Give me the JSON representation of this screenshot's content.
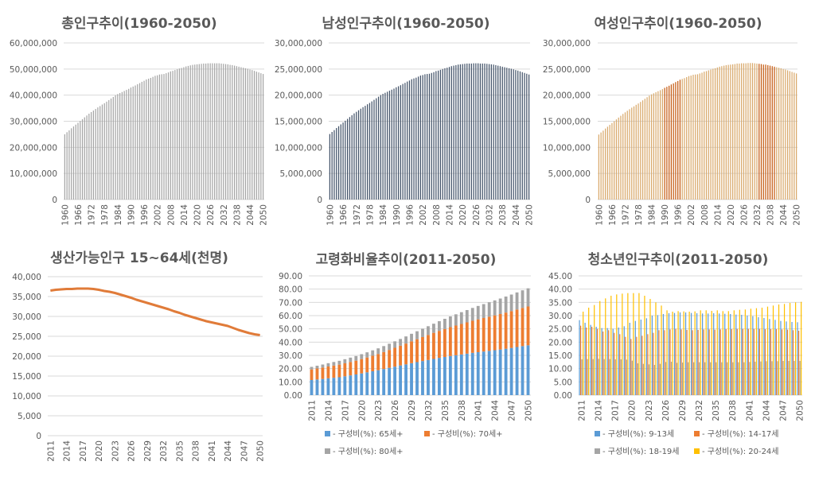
{
  "chart_data": [
    {
      "id": "total",
      "type": "bar",
      "title": "총인구추이(1960-2050)",
      "x_start": 1960,
      "x_end": 2050,
      "xtick_labels": [
        "1960",
        "1966",
        "1972",
        "1978",
        "1984",
        "1990",
        "1996",
        "2002",
        "2008",
        "2014",
        "2020",
        "2026",
        "2032",
        "2038",
        "2044",
        "2050"
      ],
      "yticks": [
        0,
        10000000,
        20000000,
        30000000,
        40000000,
        50000000,
        60000000
      ],
      "ytick_labels": [
        "0",
        "10,000,000",
        "20,000,000",
        "30,000,000",
        "40,000,000",
        "50,000,000",
        "60,000,000"
      ],
      "ylim": [
        0,
        60000000
      ],
      "grid": true,
      "color": "#a5a5a5",
      "values": [
        25000000,
        25800000,
        26500000,
        27300000,
        28000000,
        28700000,
        29400000,
        30100000,
        30800000,
        31500000,
        32200000,
        32900000,
        33500000,
        34100000,
        34700000,
        35300000,
        35800000,
        36400000,
        36900000,
        37500000,
        38100000,
        38700000,
        39300000,
        39900000,
        40400000,
        40800000,
        41200000,
        41600000,
        42000000,
        42400000,
        42900000,
        43300000,
        43700000,
        44200000,
        44600000,
        45100000,
        45500000,
        46000000,
        46300000,
        46600000,
        47000000,
        47400000,
        47600000,
        47900000,
        48000000,
        48100000,
        48400000,
        48700000,
        49100000,
        49300000,
        49600000,
        49900000,
        50200000,
        50400000,
        50700000,
        51000000,
        51200000,
        51400000,
        51600000,
        51700000,
        51800000,
        51900000,
        52000000,
        52100000,
        52100000,
        52200000,
        52200000,
        52200000,
        52200000,
        52200000,
        52200000,
        52100000,
        52000000,
        51900000,
        51800000,
        51600000,
        51500000,
        51300000,
        51100000,
        50900000,
        50700000,
        50500000,
        50300000,
        50100000,
        49800000,
        49600000,
        49300000,
        49000000,
        48700000,
        48400000,
        48100000
      ]
    },
    {
      "id": "male",
      "type": "bar",
      "title": "남성인구추이(1960-2050)",
      "x_start": 1960,
      "x_end": 2050,
      "xtick_labels": [
        "1960",
        "1966",
        "1972",
        "1978",
        "1984",
        "1990",
        "1996",
        "2002",
        "2008",
        "2014",
        "2020",
        "2026",
        "2032",
        "2038",
        "2044",
        "2050"
      ],
      "yticks": [
        0,
        5000000,
        10000000,
        15000000,
        20000000,
        25000000,
        30000000
      ],
      "ytick_labels": [
        "0",
        "5,000,000",
        "10,000,000",
        "15,000,000",
        "20,000,000",
        "25,000,000",
        "30,000,000"
      ],
      "ylim": [
        0,
        30000000
      ],
      "grid": true,
      "color": "#44546a",
      "values": [
        12550000,
        12950000,
        13300000,
        13700000,
        14050000,
        14400000,
        14750000,
        15100000,
        15450000,
        15800000,
        16150000,
        16500000,
        16800000,
        17100000,
        17400000,
        17700000,
        17950000,
        18250000,
        18500000,
        18800000,
        19100000,
        19400000,
        19700000,
        20000000,
        20250000,
        20450000,
        20650000,
        20850000,
        21050000,
        21250000,
        21500000,
        21700000,
        21900000,
        22150000,
        22350000,
        22600000,
        22800000,
        23050000,
        23200000,
        23350000,
        23550000,
        23750000,
        23850000,
        24000000,
        24050000,
        24100000,
        24250000,
        24400000,
        24600000,
        24700000,
        24850000,
        25000000,
        25150000,
        25250000,
        25400000,
        25550000,
        25650000,
        25750000,
        25850000,
        25900000,
        25950000,
        26000000,
        26050000,
        26050000,
        26050000,
        26100000,
        26100000,
        26100000,
        26050000,
        26050000,
        26050000,
        26000000,
        25950000,
        25900000,
        25850000,
        25750000,
        25650000,
        25550000,
        25450000,
        25350000,
        25250000,
        25150000,
        25050000,
        24950000,
        24800000,
        24700000,
        24550000,
        24400000,
        24250000,
        24100000,
        23950000
      ]
    },
    {
      "id": "female",
      "type": "bar",
      "title": "여성인구추이(1960-2050)",
      "x_start": 1960,
      "x_end": 2050,
      "xtick_labels": [
        "1960",
        "1966",
        "1972",
        "1978",
        "1984",
        "1990",
        "1996",
        "2002",
        "2008",
        "2014",
        "2020",
        "2026",
        "2032",
        "2038",
        "2044",
        "2050"
      ],
      "yticks": [
        0,
        5000000,
        10000000,
        15000000,
        20000000,
        25000000,
        30000000
      ],
      "ytick_labels": [
        "0",
        "5,000,000",
        "10,000,000",
        "15,000,000",
        "20,000,000",
        "25,000,000",
        "30,000,000"
      ],
      "ylim": [
        0,
        30000000
      ],
      "grid": true,
      "color": "#d9a96b",
      "highlight_color": "#c55a11",
      "highlight_ranges": [
        [
          1990,
          1997
        ],
        [
          2033,
          2040
        ]
      ],
      "values": [
        12450000,
        12850000,
        13200000,
        13600000,
        13950000,
        14300000,
        14650000,
        15000000,
        15350000,
        15700000,
        16050000,
        16400000,
        16700000,
        17000000,
        17300000,
        17600000,
        17850000,
        18150000,
        18400000,
        18700000,
        19000000,
        19300000,
        19600000,
        19900000,
        20150000,
        20350000,
        20550000,
        20750000,
        20950000,
        21150000,
        21400000,
        21600000,
        21800000,
        22050000,
        22250000,
        22500000,
        22700000,
        22950000,
        23100000,
        23250000,
        23450000,
        23650000,
        23750000,
        23900000,
        23950000,
        24000000,
        24150000,
        24300000,
        24500000,
        24600000,
        24750000,
        24900000,
        25050000,
        25150000,
        25300000,
        25450000,
        25550000,
        25650000,
        25750000,
        25800000,
        25850000,
        25900000,
        25950000,
        26050000,
        26050000,
        26100000,
        26100000,
        26100000,
        26150000,
        26150000,
        26150000,
        26100000,
        26050000,
        26000000,
        25950000,
        25850000,
        25850000,
        25750000,
        25650000,
        25550000,
        25450000,
        25350000,
        25250000,
        25150000,
        25000000,
        24900000,
        24750000,
        24600000,
        24450000,
        24300000,
        24150000
      ]
    },
    {
      "id": "working",
      "type": "line",
      "title": "생산가능인구 15~64세(천명)",
      "x_start": 2011,
      "x_end": 2050,
      "xtick_labels": [
        "2011",
        "2014",
        "2017",
        "2020",
        "2023",
        "2026",
        "2029",
        "2032",
        "2035",
        "2038",
        "2041",
        "2044",
        "2047",
        "2050"
      ],
      "yticks": [
        0,
        5000,
        10000,
        15000,
        20000,
        25000,
        30000,
        35000,
        40000
      ],
      "ytick_labels": [
        "0",
        "5,000",
        "10,000",
        "15,000",
        "20,000",
        "25,000",
        "30,000",
        "35,000",
        "40,000"
      ],
      "ylim": [
        0,
        40000
      ],
      "grid": true,
      "color": "#e07b39",
      "values": [
        36500,
        36700,
        36800,
        36900,
        36900,
        37000,
        37000,
        37000,
        36900,
        36700,
        36400,
        36200,
        35900,
        35500,
        35100,
        34700,
        34200,
        33800,
        33400,
        33000,
        32600,
        32200,
        31800,
        31300,
        30900,
        30400,
        30000,
        29600,
        29200,
        28800,
        28500,
        28200,
        27900,
        27600,
        27100,
        26600,
        26200,
        25800,
        25500,
        25300
      ]
    },
    {
      "id": "aging",
      "type": "stacked-bar",
      "title": "고령화비율추이(2011-2050)",
      "x_start": 2011,
      "x_end": 2050,
      "xtick_labels": [
        "2011",
        "2014",
        "2017",
        "2020",
        "2023",
        "2026",
        "2029",
        "2032",
        "2035",
        "2038",
        "2041",
        "2044",
        "2047",
        "2050"
      ],
      "yticks": [
        0,
        10,
        20,
        30,
        40,
        50,
        60,
        70,
        80,
        90
      ],
      "ytick_labels": [
        "0.00",
        "10.00",
        "20.00",
        "30.00",
        "40.00",
        "50.00",
        "60.00",
        "70.00",
        "80.00",
        "90.00"
      ],
      "ylim": [
        0,
        90
      ],
      "grid": true,
      "legend": "bottom",
      "series": [
        {
          "name": "- 구성비(%): 65세+",
          "color": "#5b9bd5",
          "values": [
            11.4,
            11.8,
            12.2,
            12.7,
            13.1,
            13.5,
            14.2,
            14.9,
            15.6,
            16.4,
            17.2,
            18.0,
            18.8,
            19.7,
            20.6,
            21.5,
            22.4,
            23.2,
            24.1,
            24.9,
            25.7,
            26.5,
            27.3,
            28.1,
            28.8,
            29.5,
            30.1,
            30.7,
            31.3,
            31.9,
            32.4,
            32.9,
            33.4,
            33.9,
            34.4,
            35.0,
            35.6,
            36.3,
            37.0,
            37.6
          ]
        },
        {
          "name": "- 구성비(%): 70세+",
          "color": "#ed7d31",
          "values": [
            8.0,
            8.3,
            8.6,
            8.9,
            9.2,
            9.5,
            9.8,
            10.1,
            10.4,
            10.8,
            11.2,
            11.7,
            12.2,
            12.8,
            13.5,
            14.2,
            14.9,
            15.7,
            16.5,
            17.3,
            18.1,
            18.9,
            19.7,
            20.4,
            21.1,
            21.8,
            22.4,
            23.0,
            23.6,
            24.2,
            24.8,
            25.3,
            25.8,
            26.3,
            26.8,
            27.3,
            27.8,
            28.3,
            28.8,
            29.3
          ]
        },
        {
          "name": "- 구성비(%): 80세+",
          "color": "#a5a5a5",
          "values": [
            1.9,
            2.1,
            2.3,
            2.5,
            2.7,
            2.9,
            3.1,
            3.3,
            3.5,
            3.7,
            3.9,
            4.1,
            4.3,
            4.5,
            4.7,
            4.9,
            5.1,
            5.4,
            5.7,
            6.0,
            6.3,
            6.6,
            6.9,
            7.3,
            7.7,
            8.1,
            8.5,
            8.9,
            9.3,
            9.7,
            10.1,
            10.5,
            10.9,
            11.3,
            11.7,
            12.1,
            12.5,
            12.9,
            13.3,
            13.7
          ]
        }
      ]
    },
    {
      "id": "youth",
      "type": "bar",
      "title": "청소년인구추이(2011-2050)",
      "x_start": 2011,
      "x_end": 2050,
      "xtick_labels": [
        "2011",
        "2014",
        "2017",
        "2020",
        "2023",
        "2026",
        "2029",
        "2032",
        "2035",
        "2038",
        "2041",
        "2044",
        "2047",
        "2050"
      ],
      "yticks": [
        0,
        5,
        10,
        15,
        20,
        25,
        30,
        35,
        40,
        45
      ],
      "ytick_labels": [
        "0.00",
        "5.00",
        "10.00",
        "15.00",
        "20.00",
        "25.00",
        "30.00",
        "35.00",
        "40.00",
        "45.00"
      ],
      "ylim": [
        0,
        45
      ],
      "grid": true,
      "legend": "bottom",
      "series": [
        {
          "name": "- 구성비(%): 9-13세",
          "color": "#5b9bd5",
          "values": [
            28.3,
            27.3,
            26.5,
            25.8,
            25.3,
            25.3,
            25.0,
            25.5,
            26.0,
            27.3,
            28.0,
            28.5,
            29.0,
            30.0,
            30.2,
            30.6,
            30.9,
            31.0,
            31.2,
            31.2,
            31.0,
            30.9,
            30.8,
            30.8,
            30.9,
            30.8,
            30.7,
            30.6,
            30.4,
            30.3,
            30.0,
            29.8,
            29.4,
            29.1,
            28.7,
            28.4,
            28.0,
            27.8,
            27.6,
            27.5
          ]
        },
        {
          "name": "- 구성비(%): 14-17세",
          "color": "#ed7d31",
          "values": [
            26.2,
            25.5,
            25.8,
            25.0,
            24.0,
            24.5,
            23.5,
            23.0,
            22.0,
            21.2,
            22.0,
            22.4,
            23.0,
            23.5,
            24.5,
            24.5,
            24.8,
            25.0,
            24.8,
            24.6,
            24.5,
            24.6,
            24.8,
            24.8,
            24.7,
            24.8,
            24.9,
            24.9,
            25.0,
            25.0,
            25.0,
            25.0,
            25.0,
            24.9,
            24.9,
            24.9,
            24.8,
            24.7,
            24.5,
            24.3
          ]
        },
        {
          "name": "- 구성비(%): 18-19세",
          "color": "#a5a5a5",
          "values": [
            13.5,
            13.6,
            13.6,
            13.7,
            13.6,
            13.6,
            13.5,
            13.5,
            13.4,
            13.0,
            12.0,
            11.8,
            11.6,
            11.4,
            11.8,
            12.5,
            12.6,
            12.2,
            12.3,
            12.4,
            12.4,
            12.4,
            12.4,
            12.4,
            12.4,
            12.4,
            12.4,
            12.4,
            12.4,
            12.4,
            12.5,
            12.6,
            12.7,
            12.8,
            12.8,
            12.8,
            12.9,
            12.9,
            12.9,
            12.9
          ]
        },
        {
          "name": "- 구성비(%): 20-24세",
          "color": "#ffc000",
          "values": [
            31.5,
            33.0,
            34.0,
            35.5,
            36.5,
            37.5,
            38.0,
            38.3,
            38.5,
            38.5,
            38.5,
            37.5,
            36.3,
            35.0,
            33.8,
            32.0,
            31.5,
            31.7,
            31.6,
            31.5,
            31.6,
            32.0,
            32.0,
            31.8,
            32.0,
            31.7,
            31.7,
            32.0,
            32.2,
            32.3,
            32.6,
            32.8,
            33.0,
            33.4,
            33.8,
            34.2,
            34.4,
            34.8,
            35.0,
            35.2
          ]
        }
      ]
    }
  ]
}
